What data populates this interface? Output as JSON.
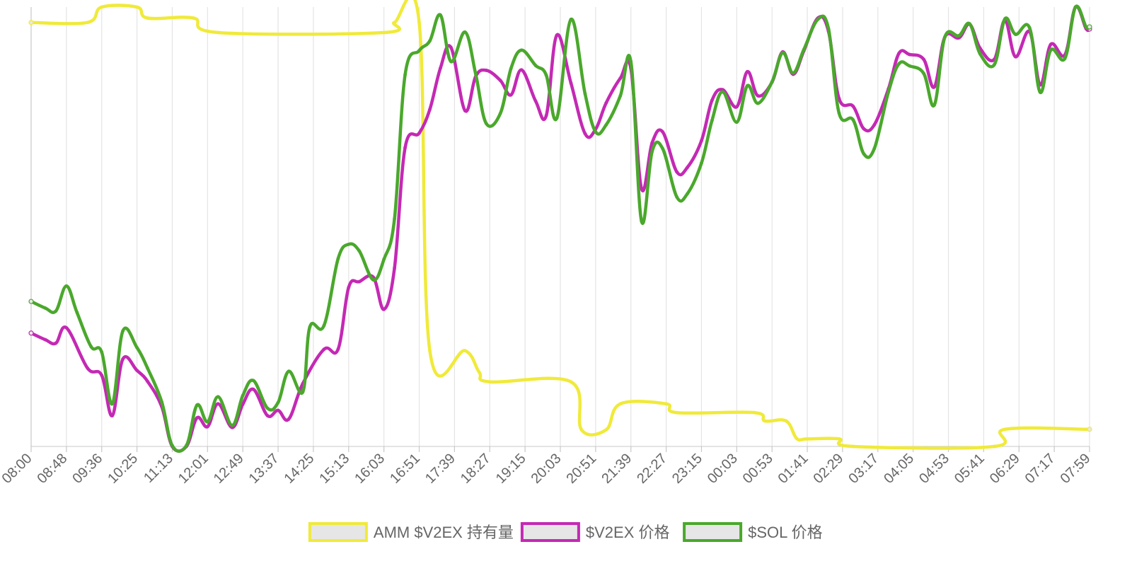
{
  "chart_data": {
    "type": "line",
    "title": "",
    "xlabel": "",
    "ylabel": "",
    "x_ticks": [
      "08:00",
      "08:48",
      "09:36",
      "10:25",
      "11:13",
      "12:01",
      "12:49",
      "13:37",
      "14:25",
      "15:13",
      "16:03",
      "16:51",
      "17:39",
      "18:27",
      "19:15",
      "20:03",
      "20:51",
      "21:39",
      "22:27",
      "23:15",
      "00:03",
      "00:53",
      "01:41",
      "02:29",
      "03:17",
      "04:05",
      "04:53",
      "05:41",
      "06:29",
      "07:17",
      "07:59"
    ],
    "x_range": [
      0,
      30
    ],
    "y_range": [
      0,
      100
    ],
    "grid": {
      "vertical": true,
      "horizontal": false
    },
    "legend_position": "bottom",
    "series": [
      {
        "name": "AMM $V2EX 持有量",
        "color": "#f0ea3a",
        "points": [
          [
            0,
            96.5
          ],
          [
            1.6,
            96.5
          ],
          [
            2,
            100
          ],
          [
            3,
            100
          ],
          [
            3.3,
            97.5
          ],
          [
            4.6,
            97.5
          ],
          [
            5.3,
            94.2
          ],
          [
            10,
            94.2
          ],
          [
            10.3,
            96.5
          ],
          [
            11,
            96.5
          ],
          [
            11.3,
            21.8
          ],
          [
            12.3,
            21.8
          ],
          [
            12.7,
            16.9
          ],
          [
            13,
            14.7
          ],
          [
            15.3,
            14.7
          ],
          [
            15.6,
            3.8
          ],
          [
            16.3,
            3.8
          ],
          [
            16.7,
            9.7
          ],
          [
            18,
            9.7
          ],
          [
            18.3,
            7.7
          ],
          [
            20.5,
            7.7
          ],
          [
            20.8,
            5.8
          ],
          [
            21.4,
            5.8
          ],
          [
            21.7,
            1.8
          ],
          [
            22,
            1.7
          ],
          [
            22.9,
            1.7
          ],
          [
            23.3,
            0
          ],
          [
            27.3,
            0
          ],
          [
            27.6,
            3.9
          ],
          [
            30,
            3.9
          ]
        ]
      },
      {
        "name": "$V2EX 价格",
        "color": "#c429b4",
        "points": [
          [
            0,
            25.8
          ],
          [
            0.4,
            24.3
          ],
          [
            0.7,
            23.5
          ],
          [
            1,
            27
          ],
          [
            1.6,
            17.8
          ],
          [
            2,
            16.2
          ],
          [
            2.3,
            7
          ],
          [
            2.6,
            19.9
          ],
          [
            3,
            17.3
          ],
          [
            3.3,
            14.8
          ],
          [
            3.7,
            9.1
          ],
          [
            4,
            0
          ],
          [
            4.4,
            0
          ],
          [
            4.7,
            6.5
          ],
          [
            5,
            4.5
          ],
          [
            5.3,
            9.7
          ],
          [
            5.7,
            4.3
          ],
          [
            6,
            9.6
          ],
          [
            6.3,
            13
          ],
          [
            6.7,
            7
          ],
          [
            7,
            8.2
          ],
          [
            7.3,
            6.2
          ],
          [
            7.7,
            14.3
          ],
          [
            8.3,
            22.1
          ],
          [
            8.7,
            22.1
          ],
          [
            9,
            36.2
          ],
          [
            9.3,
            37.5
          ],
          [
            9.7,
            38.5
          ],
          [
            10,
            31.2
          ],
          [
            10.3,
            40.6
          ],
          [
            10.6,
            68
          ],
          [
            11,
            71.3
          ],
          [
            11.3,
            76.7
          ],
          [
            11.6,
            86.1
          ],
          [
            11.9,
            90.8
          ],
          [
            12.3,
            76.4
          ],
          [
            12.6,
            84.2
          ],
          [
            12.9,
            85.6
          ],
          [
            13.3,
            83.3
          ],
          [
            13.6,
            80
          ],
          [
            13.9,
            85.7
          ],
          [
            14.3,
            78.6
          ],
          [
            14.6,
            75.3
          ],
          [
            14.9,
            93.6
          ],
          [
            15.3,
            82.7
          ],
          [
            15.7,
            71.2
          ],
          [
            16,
            72.2
          ],
          [
            16.3,
            78.2
          ],
          [
            16.7,
            83.8
          ],
          [
            17,
            86
          ],
          [
            17.3,
            58.7
          ],
          [
            17.6,
            69.1
          ],
          [
            17.9,
            71.6
          ],
          [
            18.3,
            62.5
          ],
          [
            18.6,
            63.5
          ],
          [
            19,
            69.6
          ],
          [
            19.3,
            78.8
          ],
          [
            19.6,
            81.2
          ],
          [
            20,
            77.3
          ],
          [
            20.3,
            85.3
          ],
          [
            20.6,
            79.8
          ],
          [
            21,
            82.9
          ],
          [
            21.3,
            89.8
          ],
          [
            21.6,
            84.7
          ],
          [
            21.9,
            90
          ],
          [
            22.3,
            97.5
          ],
          [
            22.6,
            94.5
          ],
          [
            22.9,
            79.2
          ],
          [
            23.3,
            77.4
          ],
          [
            23.6,
            72.3
          ],
          [
            23.9,
            73.2
          ],
          [
            24.3,
            81.4
          ],
          [
            24.6,
            89.5
          ],
          [
            24.9,
            89.2
          ],
          [
            25.3,
            88.1
          ],
          [
            25.6,
            81.8
          ],
          [
            25.9,
            93.2
          ],
          [
            26.3,
            93
          ],
          [
            26.6,
            96.1
          ],
          [
            26.9,
            90.6
          ],
          [
            27.3,
            88.1
          ],
          [
            27.6,
            97
          ],
          [
            27.9,
            88.7
          ],
          [
            28.3,
            94.4
          ],
          [
            28.6,
            82.3
          ],
          [
            28.9,
            91.5
          ],
          [
            29.3,
            89.1
          ],
          [
            29.6,
            100
          ],
          [
            29.9,
            95.1
          ],
          [
            30,
            95
          ]
        ]
      },
      {
        "name": "$SOL 价格",
        "color": "#4aa82c",
        "points": [
          [
            0,
            33
          ],
          [
            0.4,
            31.5
          ],
          [
            0.7,
            30.8
          ],
          [
            1,
            36.5
          ],
          [
            1.3,
            30.5
          ],
          [
            1.7,
            22.7
          ],
          [
            2,
            21.5
          ],
          [
            2.3,
            9.7
          ],
          [
            2.6,
            26.3
          ],
          [
            3,
            22.5
          ],
          [
            3.3,
            17.8
          ],
          [
            3.7,
            10.2
          ],
          [
            4,
            0.2
          ],
          [
            4.4,
            0.2
          ],
          [
            4.7,
            9.4
          ],
          [
            5,
            5.6
          ],
          [
            5.3,
            11.3
          ],
          [
            5.7,
            4.8
          ],
          [
            6,
            11.6
          ],
          [
            6.3,
            15
          ],
          [
            6.7,
            8.7
          ],
          [
            7,
            10
          ],
          [
            7.3,
            17.1
          ],
          [
            7.7,
            12.4
          ],
          [
            7.9,
            27.2
          ],
          [
            8.3,
            27.5
          ],
          [
            8.7,
            42.7
          ],
          [
            9,
            46
          ],
          [
            9.3,
            44.5
          ],
          [
            9.7,
            37.9
          ],
          [
            10,
            42.6
          ],
          [
            10.3,
            51.8
          ],
          [
            10.6,
            84.6
          ],
          [
            11,
            90.1
          ],
          [
            11.3,
            92.3
          ],
          [
            11.6,
            98.2
          ],
          [
            11.9,
            87.6
          ],
          [
            12.3,
            94.3
          ],
          [
            12.6,
            84.8
          ],
          [
            12.9,
            73.5
          ],
          [
            13.3,
            75.8
          ],
          [
            13.6,
            86
          ],
          [
            13.9,
            90.2
          ],
          [
            14.3,
            86.7
          ],
          [
            14.6,
            84.5
          ],
          [
            14.9,
            74.7
          ],
          [
            15.3,
            97.2
          ],
          [
            15.7,
            80.3
          ],
          [
            16,
            71.6
          ],
          [
            16.3,
            73.2
          ],
          [
            16.7,
            79.8
          ],
          [
            17,
            87.6
          ],
          [
            17.3,
            51.3
          ],
          [
            17.6,
            67.1
          ],
          [
            17.9,
            67.8
          ],
          [
            18.3,
            56.8
          ],
          [
            18.6,
            57.5
          ],
          [
            19,
            64.5
          ],
          [
            19.3,
            74.2
          ],
          [
            19.6,
            80.7
          ],
          [
            20,
            73.8
          ],
          [
            20.3,
            82.1
          ],
          [
            20.6,
            78.1
          ],
          [
            21,
            83
          ],
          [
            21.3,
            89.6
          ],
          [
            21.6,
            85
          ],
          [
            21.9,
            90.3
          ],
          [
            22.3,
            97.2
          ],
          [
            22.6,
            95.1
          ],
          [
            22.9,
            75.9
          ],
          [
            23.3,
            74.3
          ],
          [
            23.6,
            66.6
          ],
          [
            23.9,
            67.8
          ],
          [
            24.3,
            80.7
          ],
          [
            24.6,
            87.1
          ],
          [
            24.9,
            86.6
          ],
          [
            25.3,
            84.9
          ],
          [
            25.6,
            77.7
          ],
          [
            25.9,
            93.2
          ],
          [
            26.3,
            93.5
          ],
          [
            26.6,
            96.2
          ],
          [
            26.9,
            89.3
          ],
          [
            27.3,
            86.9
          ],
          [
            27.6,
            97.3
          ],
          [
            27.9,
            93.8
          ],
          [
            28.3,
            95.3
          ],
          [
            28.6,
            80.6
          ],
          [
            28.9,
            90.2
          ],
          [
            29.3,
            88.3
          ],
          [
            29.6,
            100
          ],
          [
            29.9,
            95.5
          ],
          [
            30,
            95.5
          ]
        ]
      }
    ]
  }
}
